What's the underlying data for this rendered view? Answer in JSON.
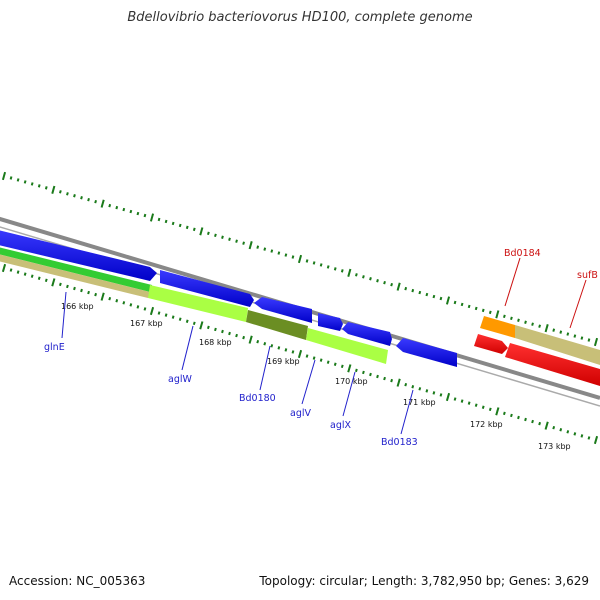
{
  "title": "Bdellovibrio bacteriovorus HD100, complete genome",
  "footer": {
    "accession": "Accession: NC_005363",
    "stats": "Topology: circular; Length: 3,782,950 bp; Genes: 3,629"
  },
  "ticks": [
    "166 kbp",
    "167 kbp",
    "168 kbp",
    "169 kbp",
    "170 kbp",
    "171 kbp",
    "172 kbp",
    "173 kbp"
  ],
  "genes": [
    {
      "name": "glnE",
      "color": "#2222cc"
    },
    {
      "name": "aglW",
      "color": "#2222cc"
    },
    {
      "name": "Bd0180",
      "color": "#2222cc"
    },
    {
      "name": "aglV",
      "color": "#2222cc"
    },
    {
      "name": "aglX",
      "color": "#2222cc"
    },
    {
      "name": "Bd0183",
      "color": "#2222cc"
    },
    {
      "name": "Bd0184",
      "color": "#cc1111"
    },
    {
      "name": "sufB",
      "color": "#cc1111"
    }
  ],
  "colors": {
    "cds_forward": "#0000ee",
    "cds_reverse": "#ee0000",
    "backbone": "#888888",
    "gc_skew": "#1a7a1a",
    "orange_feature": "#ff9900",
    "tan_feature": "#c8bf78",
    "lime_feature": "#aaff44",
    "olive_feature": "#6b8e23",
    "green_feature": "#33cc33"
  }
}
